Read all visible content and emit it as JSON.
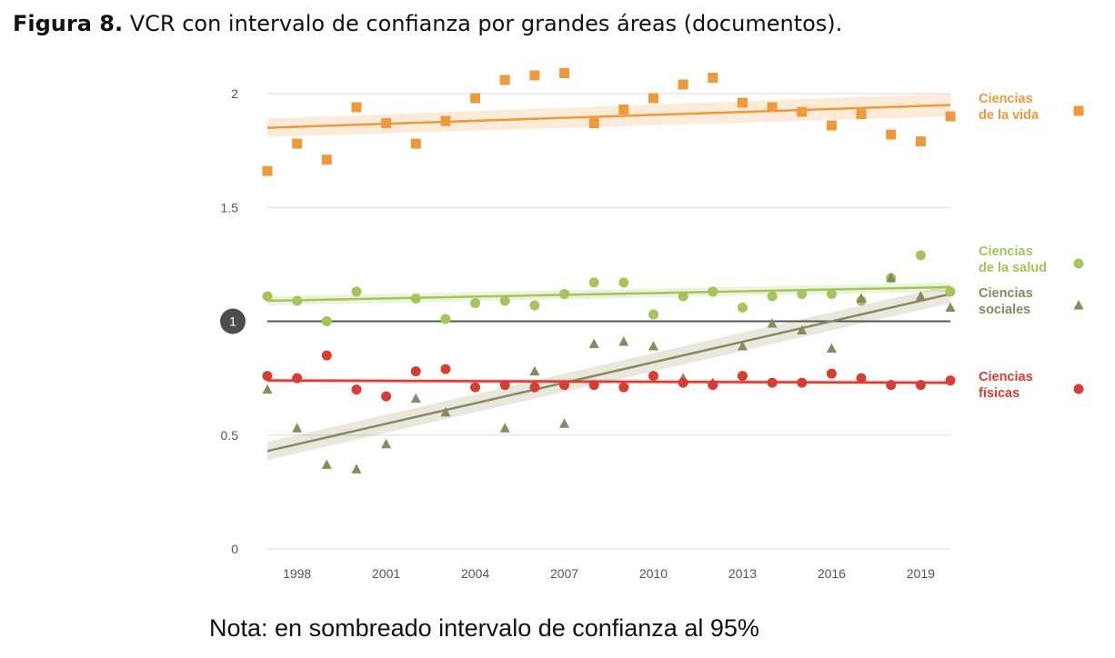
{
  "caption": {
    "label": "Figura 8.",
    "text": "VCR con intervalo de confianza por grandes áreas (documentos)."
  },
  "note": "Nota: en sombreado intervalo de confianza al 95%",
  "chart_data": {
    "type": "scatter",
    "x": [
      1997,
      1998,
      1999,
      2000,
      2001,
      2002,
      2003,
      2004,
      2005,
      2006,
      2007,
      2008,
      2009,
      2010,
      2011,
      2012,
      2013,
      2014,
      2015,
      2016,
      2017,
      2018,
      2019,
      2020
    ],
    "xticks": [
      1998,
      2001,
      2004,
      2007,
      2010,
      2013,
      2016,
      2019
    ],
    "xlim": [
      1997,
      2020
    ],
    "yticks": [
      0,
      0.5,
      1,
      1.5,
      2
    ],
    "ylim": [
      0,
      2
    ],
    "reference_line": {
      "y": 1,
      "label": "1"
    },
    "grid": "horizontal",
    "legend_position": "right",
    "confidence_band": "shaded",
    "series": [
      {
        "name": "Ciencias de la vida",
        "legend_lines": [
          "Ciencias",
          "de la vida"
        ],
        "marker": "square",
        "color": "#ee9a3c",
        "values": [
          1.66,
          1.78,
          1.71,
          1.94,
          1.87,
          1.78,
          1.88,
          1.98,
          2.06,
          2.08,
          2.09,
          1.87,
          1.93,
          1.98,
          2.04,
          2.07,
          1.96,
          1.94,
          1.92,
          1.86,
          1.91,
          1.82,
          1.79,
          1.9
        ],
        "trend": [
          1.85,
          1.95
        ],
        "band": [
          0.04,
          0.05
        ]
      },
      {
        "name": "Ciencias de la salud",
        "legend_lines": [
          "Ciencias",
          "de la salud"
        ],
        "marker": "circle",
        "color": "#a5c45a",
        "values": [
          1.11,
          1.09,
          1.0,
          1.13,
          null,
          1.1,
          1.01,
          1.08,
          1.09,
          1.07,
          1.12,
          1.17,
          1.17,
          1.03,
          1.11,
          1.13,
          1.06,
          1.11,
          1.12,
          1.12,
          1.09,
          1.19,
          1.29,
          1.13
        ],
        "trend": [
          1.09,
          1.15
        ],
        "band": [
          0.02,
          0.02
        ]
      },
      {
        "name": "Ciencias sociales",
        "legend_lines": [
          "Ciencias",
          "sociales"
        ],
        "marker": "triangle",
        "color": "#8a8a5c",
        "values": [
          0.7,
          0.53,
          0.37,
          0.35,
          0.46,
          0.66,
          0.6,
          null,
          0.53,
          0.78,
          0.55,
          0.9,
          0.91,
          0.89,
          0.75,
          0.73,
          0.89,
          0.99,
          0.96,
          0.88,
          1.1,
          1.19,
          1.11,
          1.06
        ],
        "trend": [
          0.43,
          1.12
        ],
        "band": [
          0.04,
          0.04
        ]
      },
      {
        "name": "Ciencias físicas",
        "legend_lines": [
          "Ciencias",
          "físicas"
        ],
        "marker": "circle",
        "color": "#d73d32",
        "values": [
          0.76,
          0.75,
          0.85,
          0.7,
          0.67,
          0.78,
          0.79,
          0.71,
          0.72,
          0.71,
          0.72,
          0.72,
          0.71,
          0.76,
          0.73,
          0.72,
          0.76,
          0.73,
          0.73,
          0.77,
          0.75,
          0.72,
          0.72,
          0.74
        ],
        "trend": [
          0.74,
          0.73
        ],
        "band": [
          0.01,
          0.01
        ]
      }
    ]
  }
}
